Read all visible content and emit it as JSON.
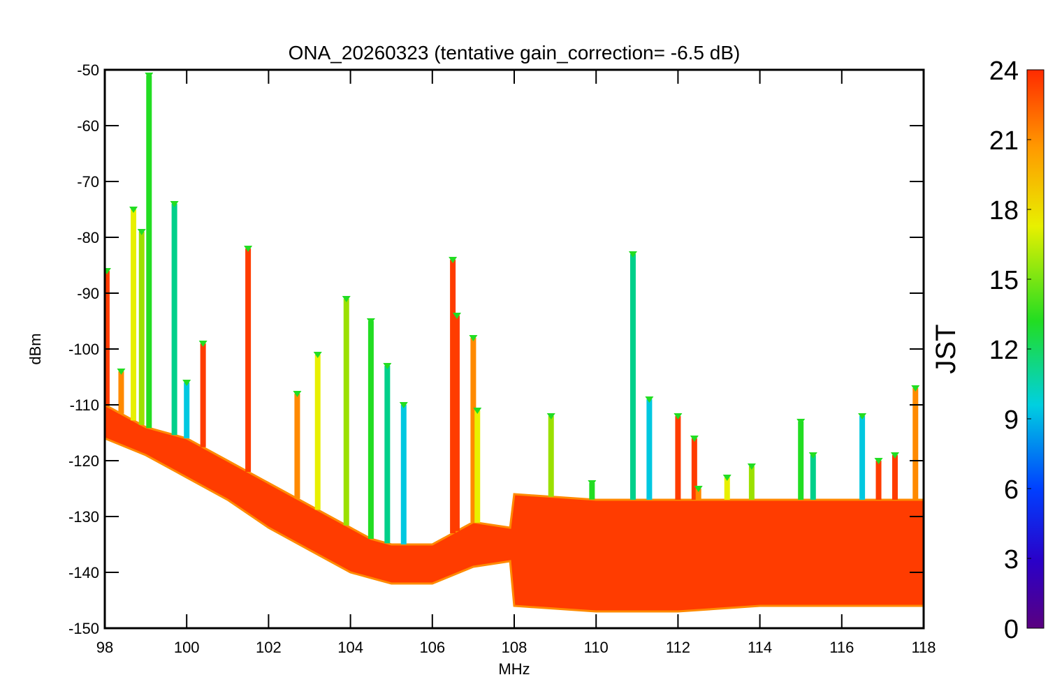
{
  "chart_data": {
    "type": "scatter",
    "title": "ONA_20260323 (tentative gain_correction= -6.5 dB)",
    "xlabel": "MHz",
    "ylabel": "dBm",
    "xlim": [
      98,
      118
    ],
    "ylim": [
      -150,
      -50
    ],
    "xticks": [
      98,
      100,
      102,
      104,
      106,
      108,
      110,
      112,
      114,
      116,
      118
    ],
    "yticks": [
      -50,
      -60,
      -70,
      -80,
      -90,
      -100,
      -110,
      -120,
      -130,
      -140,
      -150
    ],
    "grid": false,
    "colorbar": {
      "label": "JST",
      "range": [
        0,
        24
      ],
      "ticks": [
        24,
        21,
        18,
        15,
        12,
        9,
        6,
        3,
        0
      ],
      "colormap": "rainbow"
    },
    "series": [
      {
        "name": "noise floor (upper edge, dBm)",
        "x": [
          98,
          99,
          100,
          101,
          102,
          103,
          104,
          104.5,
          105,
          106,
          107,
          107.9,
          108,
          110,
          112,
          114,
          116,
          118
        ],
        "y": [
          -110,
          -114,
          -116,
          -120,
          -124,
          -128,
          -132,
          -134,
          -135,
          -135,
          -131,
          -132,
          -126,
          -127,
          -127,
          -127,
          -127,
          -127
        ]
      },
      {
        "name": "noise floor (lower edge, dBm)",
        "x": [
          98,
          99,
          100,
          101,
          102,
          103,
          104,
          104.5,
          105,
          106,
          107,
          107.9,
          108,
          110,
          112,
          114,
          116,
          118
        ],
        "y": [
          -116,
          -119,
          -123,
          -127,
          -132,
          -136,
          -140,
          -141,
          -142,
          -142,
          -139,
          -138,
          -146,
          -147,
          -147,
          -146,
          -146,
          -146
        ]
      },
      {
        "name": "peak signals",
        "x": [
          98.05,
          98.4,
          98.7,
          98.9,
          99.08,
          99.7,
          100,
          100.4,
          101.5,
          102.7,
          103.2,
          103.9,
          104.5,
          104.9,
          105.3,
          106.5,
          106.6,
          107,
          107.1,
          108.9,
          109.9,
          110.9,
          111.3,
          112,
          112.4,
          112.5,
          113.2,
          113.8,
          115,
          115.3,
          116.5,
          116.9,
          117.3,
          117.8
        ],
        "y": [
          -86,
          -104,
          -75,
          -79,
          -51,
          -74,
          -106,
          -99,
          -82,
          -108,
          -101,
          -91,
          -95,
          -103,
          -110,
          -84,
          -94,
          -98,
          -111,
          -112,
          -124,
          -83,
          -109,
          -112,
          -116,
          -125,
          -123,
          -121,
          -113,
          -119,
          -112,
          -120,
          -119,
          -107
        ]
      }
    ]
  }
}
